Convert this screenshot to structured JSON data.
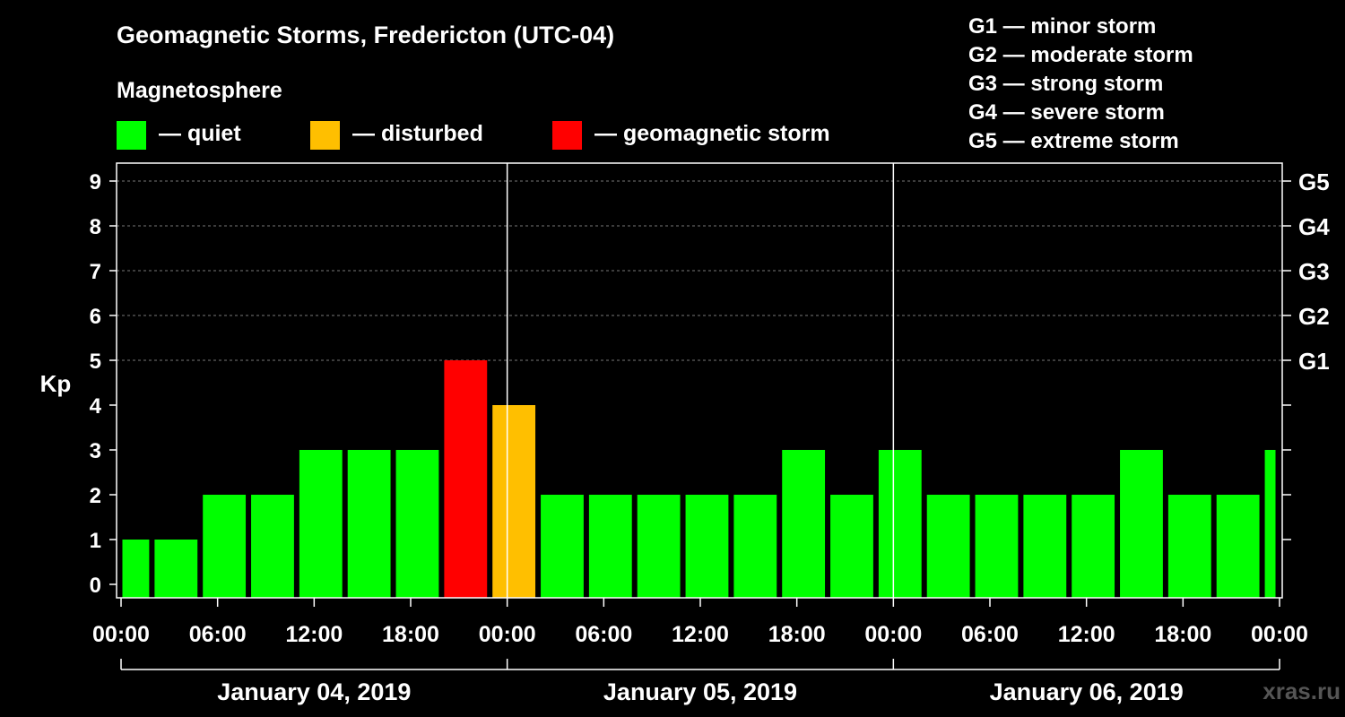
{
  "chart_data": {
    "type": "bar",
    "title": "Geomagnetic Storms, Fredericton (UTC-04)",
    "legend_title": "Magnetosphere",
    "legend": [
      {
        "label": "— quiet",
        "color": "#00ff00"
      },
      {
        "label": "— disturbed",
        "color": "#ffbf00"
      },
      {
        "label": "— geomagnetic storm",
        "color": "#ff0000"
      }
    ],
    "storm_scale": [
      "G1 — minor storm",
      "G2 — moderate storm",
      "G3 — strong storm",
      "G4 — severe storm",
      "G5 — extreme storm"
    ],
    "ylabel": "Kp",
    "ylim": [
      0,
      9
    ],
    "y_ticks": [
      "0",
      "1",
      "2",
      "3",
      "4",
      "5",
      "6",
      "7",
      "8",
      "9"
    ],
    "right_ticks": [
      {
        "value": 5,
        "label": "G1"
      },
      {
        "value": 6,
        "label": "G2"
      },
      {
        "value": 7,
        "label": "G3"
      },
      {
        "value": 8,
        "label": "G4"
      },
      {
        "value": 9,
        "label": "G5"
      }
    ],
    "x_range_hours": [
      0,
      72
    ],
    "x_tick_labels": [
      "00:00",
      "06:00",
      "12:00",
      "18:00",
      "00:00",
      "06:00",
      "12:00",
      "18:00",
      "00:00",
      "06:00",
      "12:00",
      "18:00",
      "00:00"
    ],
    "day_labels": [
      "January 04, 2019",
      "January 05, 2019",
      "January 06, 2019"
    ],
    "bars": [
      {
        "start": 0,
        "end": 2,
        "kp": 1,
        "level": "quiet"
      },
      {
        "start": 2,
        "end": 5,
        "kp": 1,
        "level": "quiet"
      },
      {
        "start": 5,
        "end": 8,
        "kp": 2,
        "level": "quiet"
      },
      {
        "start": 8,
        "end": 11,
        "kp": 2,
        "level": "quiet"
      },
      {
        "start": 11,
        "end": 14,
        "kp": 3,
        "level": "quiet"
      },
      {
        "start": 14,
        "end": 17,
        "kp": 3,
        "level": "quiet"
      },
      {
        "start": 17,
        "end": 20,
        "kp": 3,
        "level": "quiet"
      },
      {
        "start": 20,
        "end": 23,
        "kp": 5,
        "level": "storm"
      },
      {
        "start": 23,
        "end": 26,
        "kp": 4,
        "level": "disturbed"
      },
      {
        "start": 26,
        "end": 29,
        "kp": 2,
        "level": "quiet"
      },
      {
        "start": 29,
        "end": 32,
        "kp": 2,
        "level": "quiet"
      },
      {
        "start": 32,
        "end": 35,
        "kp": 2,
        "level": "quiet"
      },
      {
        "start": 35,
        "end": 38,
        "kp": 2,
        "level": "quiet"
      },
      {
        "start": 38,
        "end": 41,
        "kp": 2,
        "level": "quiet"
      },
      {
        "start": 41,
        "end": 44,
        "kp": 3,
        "level": "quiet"
      },
      {
        "start": 44,
        "end": 47,
        "kp": 2,
        "level": "quiet"
      },
      {
        "start": 47,
        "end": 50,
        "kp": 3,
        "level": "quiet"
      },
      {
        "start": 50,
        "end": 53,
        "kp": 2,
        "level": "quiet"
      },
      {
        "start": 53,
        "end": 56,
        "kp": 2,
        "level": "quiet"
      },
      {
        "start": 56,
        "end": 59,
        "kp": 2,
        "level": "quiet"
      },
      {
        "start": 59,
        "end": 62,
        "kp": 2,
        "level": "quiet"
      },
      {
        "start": 62,
        "end": 65,
        "kp": 3,
        "level": "quiet"
      },
      {
        "start": 65,
        "end": 68,
        "kp": 2,
        "level": "quiet"
      },
      {
        "start": 68,
        "end": 71,
        "kp": 2,
        "level": "quiet"
      },
      {
        "start": 71,
        "end": 72,
        "kp": 3,
        "level": "quiet"
      }
    ],
    "colors": {
      "quiet": "#00ff00",
      "disturbed": "#ffbf00",
      "storm": "#ff0000"
    },
    "grid": true,
    "watermark": "xras.ru"
  }
}
